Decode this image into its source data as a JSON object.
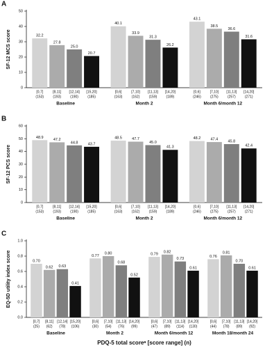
{
  "chart_data": [
    {
      "type": "bar",
      "panel_label": "A",
      "ylabel": "SF-12 MCS score",
      "ylim": [
        0,
        50
      ],
      "yticks": [
        0,
        10,
        20,
        30,
        40,
        50
      ],
      "colors": [
        "#d3d3d3",
        "#ababab",
        "#7f7f7f",
        "#111111"
      ],
      "groups": [
        {
          "name": "Baseline",
          "categories": [
            "[0,7]",
            "[8,11]",
            "[12,14]",
            "[15,20]"
          ],
          "n": [
            "(153)",
            "(193)",
            "(190)",
            "(185)"
          ],
          "values": [
            32.2,
            27.8,
            25.0,
            20.7
          ],
          "value_labels": [
            "32.2",
            "27.8",
            "25.0",
            "20.7"
          ]
        },
        {
          "name": "Month 2",
          "categories": [
            "[0,6]",
            "[7,10]",
            "[11,13]",
            "[14,20]"
          ],
          "n": [
            "(163)",
            "(162)",
            "(159)",
            "(189)"
          ],
          "values": [
            40.1,
            33.9,
            31.3,
            26.2
          ]
        },
        {
          "name": "Month 6/month 12",
          "categories": [
            "[0,6]",
            "[7,10]",
            "[11,13]",
            "[14,20]"
          ],
          "n": [
            "(246)",
            "(275)",
            "(257)",
            "(271)"
          ],
          "values": [
            43.1,
            38.5,
            36.6,
            31.6
          ]
        }
      ]
    },
    {
      "type": "bar",
      "panel_label": "B",
      "ylabel": "SF-12 PCS score",
      "ylim": [
        0,
        60
      ],
      "yticks": [
        0,
        10,
        20,
        30,
        40,
        50,
        60
      ],
      "colors": [
        "#d3d3d3",
        "#ababab",
        "#7f7f7f",
        "#111111"
      ],
      "groups": [
        {
          "name": "Baseline",
          "categories": [
            "[0,7]",
            "[8,11]",
            "[12,14]",
            "[15,20]"
          ],
          "n": [
            "(153)",
            "(193)",
            "(190)",
            "(185)"
          ],
          "values": [
            48.9,
            47.2,
            44.8,
            43.7
          ]
        },
        {
          "name": "Month 2",
          "categories": [
            "[0,6]",
            "[7,10]",
            "[11,13]",
            "[14,20]"
          ],
          "n": [
            "(163)",
            "(162)",
            "(159)",
            "(189)"
          ],
          "values": [
            48.5,
            47.7,
            45.0,
            41.3
          ],
          "value_labels": [
            "48.5",
            "47.7",
            "45.0",
            "41.3"
          ]
        },
        {
          "name": "Month 6/month 12",
          "categories": [
            "[0,6]",
            "[7,10]",
            "[11,13]",
            "[14,20]"
          ],
          "n": [
            "(246)",
            "(275)",
            "(257)",
            "(271)"
          ],
          "values": [
            48.2,
            47.4,
            45.8,
            42.4
          ]
        }
      ]
    },
    {
      "type": "bar",
      "panel_label": "C",
      "ylabel": "EQ-5D utility index score",
      "xlabel": "PDQ-5 total scoreᵃ [score range] (n)",
      "ylim": [
        0,
        1.0
      ],
      "yticks": [
        {
          "value": 0,
          "label": "0.0"
        },
        0.2,
        0.4,
        0.6,
        0.8,
        {
          "value": 1,
          "label": "1.0"
        }
      ],
      "colors": [
        "#d3d3d3",
        "#ababab",
        "#7f7f7f",
        "#111111"
      ],
      "groups": [
        {
          "name": "Baseline",
          "categories": [
            "[0,7]",
            "[8,11]",
            "[12,14]",
            "[15,20]"
          ],
          "n": [
            "(25)",
            "(62)",
            "(78)",
            "(106)"
          ],
          "values": [
            0.7,
            0.62,
            0.63,
            0.41
          ],
          "value_labels": [
            "0.70",
            "0.62",
            "0.63",
            "0.41"
          ]
        },
        {
          "name": "Month 2",
          "categories": [
            "[0,6]",
            "[7,10]",
            "[11,13]",
            "[14,20]"
          ],
          "n": [
            "(30)",
            "(54)",
            "(76)",
            "(99)"
          ],
          "values": [
            0.77,
            0.8,
            0.68,
            0.52
          ],
          "value_labels": [
            "0.77",
            "0.80",
            "0.68",
            "0.52"
          ]
        },
        {
          "name": "Month 6/month 12",
          "categories": [
            "[0,6]",
            "[7,10]",
            "[11,13]",
            "[14,20]"
          ],
          "n": [
            "(47)",
            "(89)",
            "(114)",
            "(130)"
          ],
          "values": [
            0.79,
            0.82,
            0.73,
            0.61
          ],
          "value_labels": [
            "0.79",
            "0.82",
            "0.73",
            "0.61"
          ]
        },
        {
          "name": "Month 18/month 24",
          "categories": [
            "[0,6]",
            "[7,10]",
            "[11,13]",
            "[14,20]"
          ],
          "n": [
            "(44)",
            "(78)",
            "(89)",
            "(92)"
          ],
          "values": [
            0.76,
            0.81,
            0.7,
            0.61
          ],
          "value_labels": [
            "0.76",
            "0.81",
            "0.70",
            "0.61"
          ]
        }
      ]
    }
  ]
}
